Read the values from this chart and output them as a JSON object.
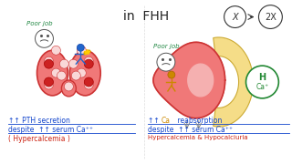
{
  "bg_color": "#ffffff",
  "title": "in  FHH",
  "title_color": "#222222",
  "title_fontsize": 10,
  "left_text1": "↑↑ PTH secretion",
  "left_text2": "despite  ↑↑ serum Ca⁺⁺",
  "left_text3": "( Hypercalcemia )",
  "right_text2": "despite  ↑↑ serum Ca⁺⁺",
  "right_text3": "Hypercalcemia & Hypocalciuria",
  "sensor_label": "X",
  "result_label": "2X",
  "thyroid_color": "#f07878",
  "thyroid_edge": "#cc3333",
  "thyroid_inner": "#f5c0c0",
  "thyroid_follicle": "#f9d8d8",
  "kidney_color": "#f07878",
  "kidney_edge": "#cc3333",
  "kidney_hilum": "#f5b0b0",
  "adrenal_color": "#f5dd88",
  "adrenal_edge": "#ccaa33",
  "ca_bubble_color": "#228833",
  "text_blue": "#1144cc",
  "text_red": "#cc2211",
  "text_green": "#228844",
  "text_orange": "#cc8800"
}
